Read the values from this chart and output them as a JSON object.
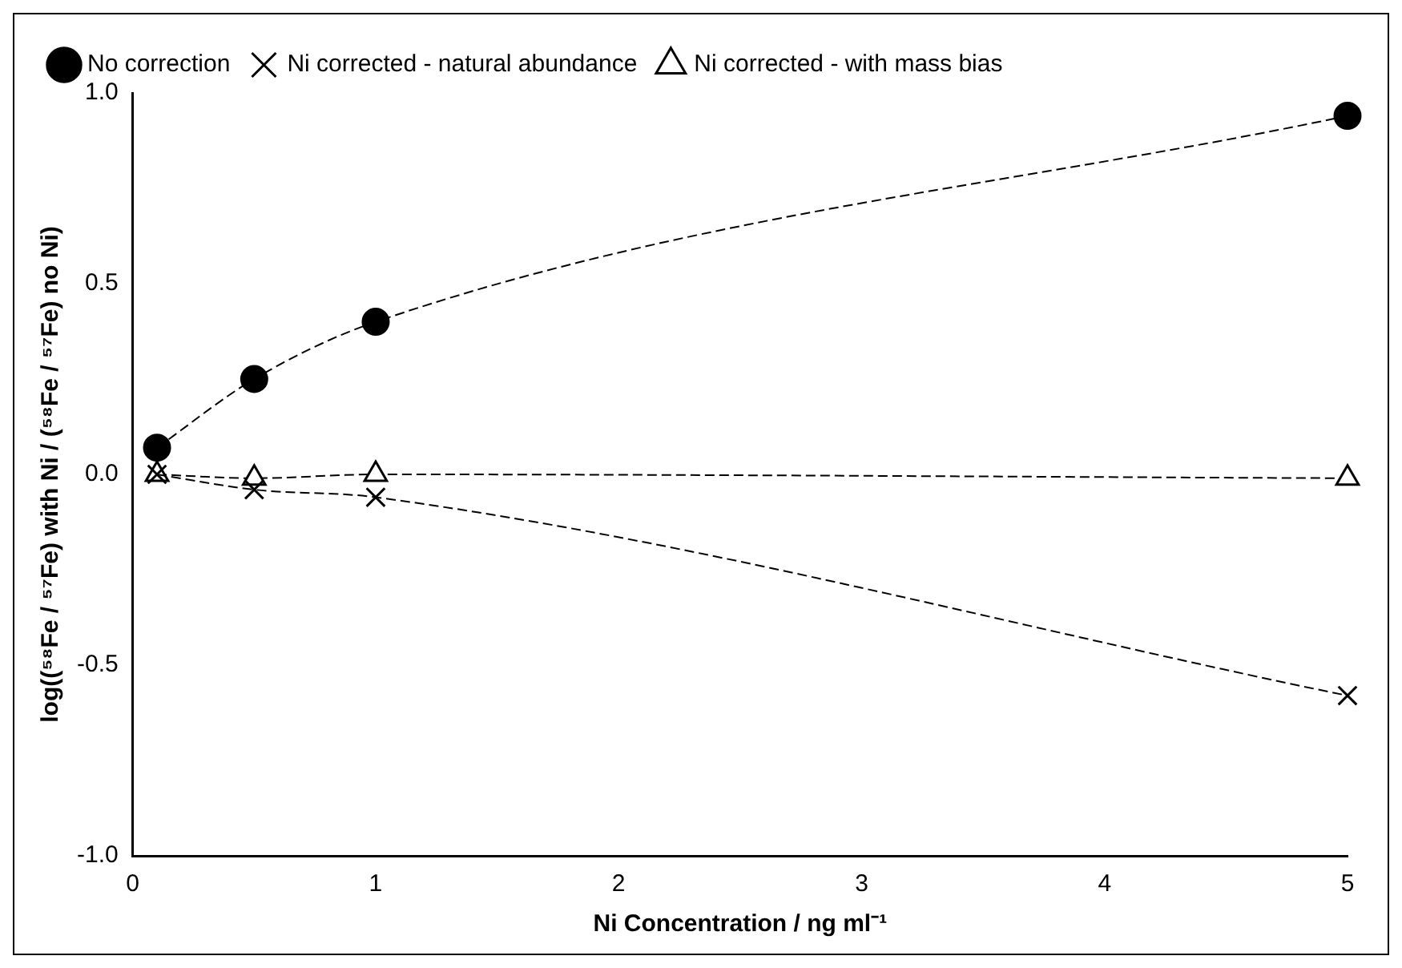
{
  "chart_data": {
    "type": "line",
    "xlabel": "Ni Concentration / ng ml⁻¹",
    "ylabel": "log((⁵⁸Fe / ⁵⁷Fe) with Ni / (⁵⁸Fe / ⁵⁷Fe) no Ni)",
    "x": [
      0.1,
      0.5,
      1,
      5
    ],
    "xlim": [
      0,
      5
    ],
    "xticks": [
      0,
      1,
      2,
      3,
      4,
      5
    ],
    "ylim": [
      -1,
      1
    ],
    "yticks": [
      {
        "value": -1,
        "label": "-1.0"
      },
      {
        "value": -0.5,
        "label": "-0.5"
      },
      {
        "value": 0,
        "label": "0.0"
      },
      {
        "value": 0.5,
        "label": "0.5"
      },
      {
        "value": 1,
        "label": "1.0"
      }
    ],
    "grid": false,
    "legend": "top left",
    "line_style": "dashed",
    "series": [
      {
        "name": "No correction",
        "color": "#000000",
        "marker": "circle",
        "values": [
          0.07,
          0.25,
          0.4,
          0.94
        ]
      },
      {
        "name": "Ni corrected - natural abundance",
        "color": "#000000",
        "marker": "cross",
        "values": [
          0.0,
          -0.04,
          -0.06,
          -0.58
        ]
      },
      {
        "name": "Ni corrected - with mass bias",
        "color": "#000000",
        "marker": "triangle",
        "values": [
          0.0,
          -0.01,
          0.0,
          -0.01
        ]
      }
    ]
  }
}
